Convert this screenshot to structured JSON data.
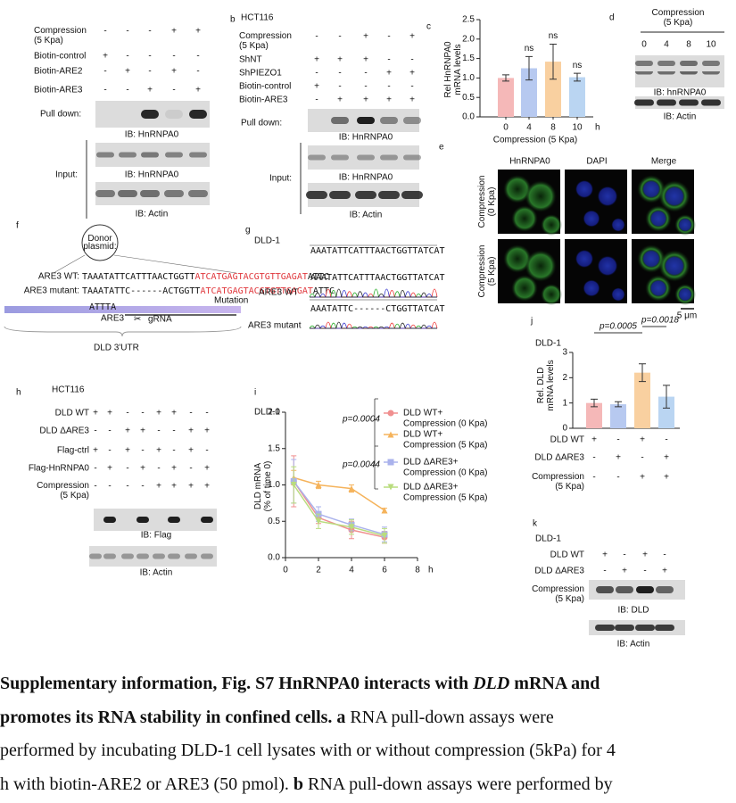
{
  "panels": {
    "a": {
      "rows": [
        {
          "label": [
            "Compression",
            "(5 Kpa)"
          ],
          "signs": [
            "-",
            "-",
            "-",
            "+",
            "+"
          ]
        },
        {
          "label": "Biotin-control",
          "signs": [
            "+",
            "-",
            "-",
            "-",
            "-"
          ]
        },
        {
          "label": "Biotin-ARE2",
          "signs": [
            "-",
            "+",
            "-",
            "+",
            "-"
          ]
        },
        {
          "label": "Biotin-ARE3",
          "signs": [
            "-",
            "-",
            "+",
            "-",
            "+"
          ]
        }
      ],
      "pull_down": "Pull down:",
      "ib_pull": "IB: HnRNPA0",
      "input": "Input:",
      "ib_input": "IB: HnRNPA0",
      "ib_actin": "IB: Actin"
    },
    "b": {
      "letter": "b",
      "cell": "HCT116",
      "rows": [
        {
          "label": [
            "Compression",
            "(5 Kpa)"
          ],
          "signs": [
            "-",
            "-",
            "+",
            "-",
            "+"
          ]
        },
        {
          "label": "ShNT",
          "signs": [
            "+",
            "+",
            "+",
            "-",
            "-"
          ]
        },
        {
          "label": "ShPIEZO1",
          "signs": [
            "-",
            "-",
            "-",
            "+",
            "+"
          ]
        },
        {
          "label": "Biotin-control",
          "signs": [
            "+",
            "-",
            "-",
            "-",
            "-"
          ]
        },
        {
          "label": "Biotin-ARE3",
          "signs": [
            "-",
            "+",
            "+",
            "+",
            "+"
          ]
        }
      ],
      "pull_down": "Pull down:",
      "ib_pull": "IB: HnRNPA0",
      "input": "Input:",
      "ib_input": "IB: HnRNPA0",
      "ib_actin": "IB: Actin"
    },
    "c": {
      "letter": "c",
      "chart": {
        "type": "bar",
        "ylabel": [
          "Rel HnRNPA0",
          "mRNA levels"
        ],
        "xlabel": "Compression (5 Kpa)",
        "xunit": "h",
        "categories": [
          "0",
          "4",
          "8",
          "10"
        ],
        "values": [
          1.0,
          1.25,
          1.42,
          1.02
        ],
        "errors": [
          0.08,
          0.3,
          0.45,
          0.1
        ],
        "colors": [
          "#f5b8b8",
          "#b7c9f0",
          "#f9d0a0",
          "#bad5f2"
        ],
        "annotations": [
          "ns",
          "ns",
          "ns"
        ],
        "ylim": [
          0,
          2.5
        ],
        "yticks": [
          {
            "value": 0,
            "label": "0.0"
          },
          0.5,
          {
            "value": 1,
            "label": "1.0"
          },
          1.5,
          {
            "value": 2,
            "label": "2.0"
          },
          2.5
        ]
      }
    },
    "d": {
      "letter": "d",
      "header": [
        "Compression",
        "(5 Kpa)"
      ],
      "times": [
        "0",
        "4",
        "8",
        "10"
      ],
      "ib_main": "IB: hnRNPA0",
      "ib_actin": "IB: Actin"
    },
    "e": {
      "letter": "e",
      "columns": [
        "HnRNPA0",
        "DAPI",
        "Merge"
      ],
      "rows": [
        [
          "Compression",
          "(0 Kpa)"
        ],
        [
          "Compression",
          "(5 Kpa)"
        ]
      ],
      "scale": "5 μm"
    },
    "f": {
      "letter": "f",
      "donor": [
        "Donor",
        "plasmid:"
      ],
      "wt_label": "ARE3 WT:",
      "wt_seq": [
        "TAAATATTCATTTAACTGGTT",
        "ATCATGAGTACGTGTTGAGAT",
        "ATTC"
      ],
      "mut_label": "ARE3 mutant:",
      "mut_seq": [
        "TAAATATTC------ACTGGTT",
        "ATCATGAGTACGTGTTGAGAT",
        "ATTC"
      ],
      "mutation": "Mutation",
      "attta": "ATTTA",
      "are3": "ARE3",
      "grna": "gRNA",
      "utr": "DLD 3'UTR"
    },
    "g": {
      "letter": "g",
      "cell": "DLD-1",
      "wt_label": "ARE3 WT",
      "wt_seq": "AAATATTCATTTAACTGGTTATCAT",
      "mut_label": "ARE3 mutant",
      "mut_seq": "AAATATTC------CTGGTTATCAT"
    },
    "h": {
      "letter": "h",
      "cell": "HCT116",
      "rows": [
        {
          "label": "DLD WT",
          "signs": [
            "+",
            "+",
            "-",
            "-",
            "+",
            "+",
            "-",
            "-"
          ]
        },
        {
          "label": "DLD ΔARE3",
          "signs": [
            "-",
            "-",
            "+",
            "+",
            "-",
            "-",
            "+",
            "+"
          ]
        },
        {
          "label": "Flag-ctrl",
          "signs": [
            "+",
            "-",
            "+",
            "-",
            "+",
            "-",
            "+",
            "-"
          ]
        },
        {
          "label": "Flag-HnRNPA0",
          "signs": [
            "-",
            "+",
            "-",
            "+",
            "-",
            "+",
            "-",
            "+"
          ]
        },
        {
          "label": [
            "Compression",
            "(5 Kpa)"
          ],
          "signs": [
            "-",
            "-",
            "-",
            "-",
            "+",
            "+",
            "+",
            "+"
          ]
        }
      ],
      "ib_flag": "IB: Flag",
      "ib_actin": "IB: Actin"
    },
    "i": {
      "letter": "i",
      "cell": "DLD-1",
      "chart": {
        "type": "line",
        "ylabel": [
          "DLD mRNA",
          "(% of time 0)"
        ],
        "xunit": "h",
        "x": [
          0.5,
          2,
          4,
          6
        ],
        "xlim": [
          0,
          8
        ],
        "xticks": [
          0,
          2,
          4,
          6,
          8
        ],
        "ylim": [
          0,
          2
        ],
        "yticks": [
          {
            "value": 0,
            "label": "0.0"
          },
          0.5,
          {
            "value": 1,
            "label": "1.0"
          },
          1.5,
          {
            "value": 2,
            "label": "2.0"
          }
        ],
        "pvalues": [
          "p=0.0004",
          "p=0.0044"
        ],
        "series": [
          {
            "name": [
              "DLD WT+",
              "Compression (0 Kpa)"
            ],
            "color": "#f08f8f",
            "marker": "circle",
            "values": [
              1.05,
              0.55,
              0.38,
              0.28
            ],
            "errors": [
              0.35,
              0.08,
              0.12,
              0.08
            ]
          },
          {
            "name": [
              "DLD WT+",
              "Compression (5 Kpa)"
            ],
            "color": "#f5b35b",
            "marker": "triangle",
            "values": [
              1.1,
              1.0,
              0.95,
              0.65
            ],
            "errors": [
              0.1,
              0.05,
              0.05,
              0.03
            ]
          },
          {
            "name": [
              "DLD ΔARE3+",
              "Compression (0 Kpa)"
            ],
            "color": "#aab2ec",
            "marker": "square",
            "values": [
              1.05,
              0.6,
              0.45,
              0.32
            ],
            "errors": [
              0.3,
              0.1,
              0.08,
              0.1
            ]
          },
          {
            "name": [
              "DLD ΔARE3+",
              "Compression (5 Kpa)"
            ],
            "color": "#b9dc7e",
            "marker": "triangle-down",
            "values": [
              1.0,
              0.5,
              0.42,
              0.3
            ],
            "errors": [
              0.25,
              0.1,
              0.1,
              0.1
            ]
          }
        ]
      }
    },
    "j": {
      "letter": "j",
      "cell": "DLD-1",
      "chart": {
        "type": "bar",
        "ylabel": [
          "Rel. DLD",
          "mRNA levels"
        ],
        "values": [
          1.0,
          0.95,
          2.2,
          1.25
        ],
        "errors": [
          0.15,
          0.1,
          0.35,
          0.45
        ],
        "colors": [
          "#f5b8b8",
          "#b7c9f0",
          "#f9d0a0",
          "#bad5f2"
        ],
        "ylim": [
          0,
          3
        ],
        "yticks": [
          0,
          1,
          2,
          3
        ],
        "pvalues": [
          "p=0.0005",
          "p=0.0018"
        ]
      },
      "rows": [
        {
          "label": "DLD WT",
          "signs": [
            "+",
            "-",
            "+",
            "-"
          ]
        },
        {
          "label": "DLD ΔARE3",
          "signs": [
            "-",
            "+",
            "-",
            "+"
          ]
        },
        {
          "label": [
            "Compression",
            "(5 Kpa)"
          ],
          "signs": [
            "-",
            "-",
            "+",
            "+"
          ]
        }
      ]
    },
    "k": {
      "letter": "k",
      "cell": "DLD-1",
      "rows": [
        {
          "label": "DLD WT",
          "signs": [
            "+",
            "-",
            "+",
            "-"
          ]
        },
        {
          "label": "DLD ΔARE3",
          "signs": [
            "-",
            "+",
            "-",
            "+"
          ]
        },
        {
          "label": [
            "Compression",
            "(5 Kpa)"
          ],
          "signs": [
            "-",
            "-",
            "+",
            "+"
          ]
        }
      ],
      "ib_dld": "IB: DLD",
      "ib_actin": "IB: Actin"
    }
  },
  "caption": {
    "lines": [
      [
        {
          "text": "Supplementary information, Fig. S7 HnRNPA0 interacts with ",
          "bold": true
        },
        {
          "text": "DLD",
          "bold": true,
          "italic": true
        },
        {
          "text": " mRNA and",
          "bold": true
        }
      ],
      [
        {
          "text": "promotes its RNA stability in confined cells. a",
          "bold": true
        },
        {
          "text": " RNA pull-down assays were"
        }
      ],
      [
        {
          "text": "performed by incubating DLD-1 cell lysates with or without compression (5kPa) for 4"
        }
      ],
      [
        {
          "text": "h with biotin-ARE2 or ARE3 (50 pmol). "
        },
        {
          "text": "b",
          "bold": true
        },
        {
          "text": " RNA pull-down assays were performed by"
        }
      ]
    ]
  }
}
